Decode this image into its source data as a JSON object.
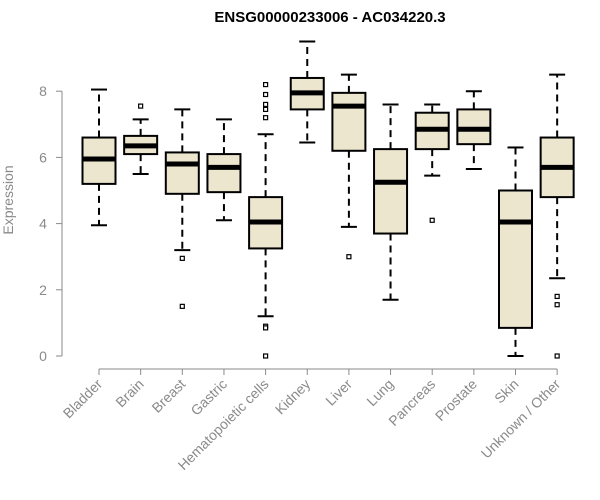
{
  "chart_data": {
    "type": "box",
    "title": "ENSG00000233006 - AC034220.3",
    "xlabel": "",
    "ylabel": "Expression",
    "ylim": [
      0,
      8.5
    ],
    "yticks": [
      0,
      2,
      4,
      6,
      8
    ],
    "box_fill": "#ede6cf",
    "categories": [
      "Bladder",
      "Brain",
      "Breast",
      "Gastric",
      "Hematopoietic cells",
      "Kidney",
      "Liver",
      "Lung",
      "Pancreas",
      "Prostate",
      "Skin",
      "Unknown / Other"
    ],
    "boxes": [
      {
        "whisker_low": 3.95,
        "q1": 5.2,
        "median": 5.95,
        "q3": 6.6,
        "whisker_high": 8.05,
        "outliers": []
      },
      {
        "whisker_low": 5.5,
        "q1": 6.1,
        "median": 6.35,
        "q3": 6.65,
        "whisker_high": 7.15,
        "outliers": [
          7.55
        ]
      },
      {
        "whisker_low": 3.2,
        "q1": 4.9,
        "median": 5.8,
        "q3": 6.15,
        "whisker_high": 7.45,
        "outliers": [
          2.95,
          1.5
        ]
      },
      {
        "whisker_low": 4.1,
        "q1": 4.95,
        "median": 5.7,
        "q3": 6.1,
        "whisker_high": 7.15,
        "outliers": []
      },
      {
        "whisker_low": 1.2,
        "q1": 3.25,
        "median": 4.05,
        "q3": 4.8,
        "whisker_high": 6.7,
        "outliers": [
          8.2,
          7.9,
          7.6,
          7.45,
          7.2,
          0.9,
          0.85,
          0.0
        ]
      },
      {
        "whisker_low": 6.45,
        "q1": 7.45,
        "median": 7.95,
        "q3": 8.4,
        "whisker_high": 9.5,
        "outliers": []
      },
      {
        "whisker_low": 3.9,
        "q1": 6.2,
        "median": 7.55,
        "q3": 7.95,
        "whisker_high": 8.5,
        "outliers": [
          3.0
        ]
      },
      {
        "whisker_low": 1.7,
        "q1": 3.7,
        "median": 5.25,
        "q3": 6.25,
        "whisker_high": 7.6,
        "outliers": []
      },
      {
        "whisker_low": 5.45,
        "q1": 6.25,
        "median": 6.85,
        "q3": 7.35,
        "whisker_high": 7.6,
        "outliers": [
          4.1
        ]
      },
      {
        "whisker_low": 5.65,
        "q1": 6.4,
        "median": 6.85,
        "q3": 7.45,
        "whisker_high": 8.0,
        "outliers": []
      },
      {
        "whisker_low": 0.0,
        "q1": 0.85,
        "median": 4.05,
        "q3": 5.0,
        "whisker_high": 6.3,
        "outliers": []
      },
      {
        "whisker_low": 2.35,
        "q1": 4.8,
        "median": 5.7,
        "q3": 6.6,
        "whisker_high": 8.5,
        "outliers": [
          1.8,
          1.55,
          0.0
        ]
      }
    ]
  }
}
